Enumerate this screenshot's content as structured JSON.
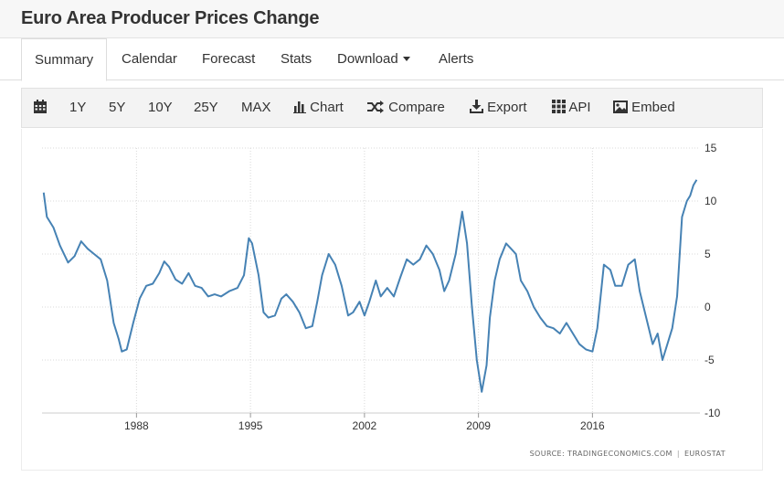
{
  "header": {
    "title": "Euro Area Producer Prices Change"
  },
  "tabs": [
    {
      "label": "Summary"
    },
    {
      "label": "Calendar"
    },
    {
      "label": "Forecast"
    },
    {
      "label": "Stats"
    },
    {
      "label": "Download"
    },
    {
      "label": "Alerts"
    }
  ],
  "toolbar": {
    "calendar_icon": "calendar-icon",
    "ranges": [
      "1Y",
      "5Y",
      "10Y",
      "25Y",
      "MAX"
    ],
    "chart_label": "Chart",
    "compare_label": "Compare",
    "export_label": "Export",
    "api_label": "API",
    "embed_label": "Embed"
  },
  "source": {
    "left": "SOURCE: TRADINGECONOMICS.COM",
    "separator": "|",
    "right": "EUROSTAT"
  },
  "colors": {
    "line": "#4682b4",
    "grid": "#d9d9d9",
    "axis_text": "#333333"
  },
  "chart_data": {
    "type": "line",
    "title": "",
    "xlabel": "",
    "ylabel": "",
    "y_position": "right",
    "ylim": [
      -10,
      15
    ],
    "yticks": [
      15,
      10,
      5,
      0,
      -5,
      -10
    ],
    "xlim": [
      1982.2,
      2022.6
    ],
    "xticks": [
      1988,
      1995,
      2002,
      2009,
      2016
    ],
    "grid": true,
    "series": [
      {
        "x": [
          1982.3,
          1982.5,
          1982.9,
          1983.3,
          1983.8,
          1984.2,
          1984.6,
          1985.0,
          1985.4,
          1985.8,
          1986.2,
          1986.6,
          1986.9,
          1987.1,
          1987.4,
          1987.8,
          1988.2,
          1988.6,
          1989.0,
          1989.4,
          1989.7,
          1990.0,
          1990.4,
          1990.8,
          1991.2,
          1991.6,
          1992.0,
          1992.4,
          1992.8,
          1993.2,
          1993.7,
          1994.2,
          1994.6,
          1994.9,
          1995.1,
          1995.5,
          1995.8,
          1996.1,
          1996.5,
          1996.9,
          1997.2,
          1997.6,
          1998.0,
          1998.4,
          1998.8,
          1999.1,
          1999.4,
          1999.8,
          2000.2,
          2000.6,
          2001.0,
          2001.3,
          2001.7,
          2002.0,
          2002.3,
          2002.7,
          2003.0,
          2003.4,
          2003.8,
          2004.2,
          2004.6,
          2005.0,
          2005.4,
          2005.8,
          2006.2,
          2006.6,
          2006.9,
          2007.2,
          2007.6,
          2008.0,
          2008.3,
          2008.6,
          2008.9,
          2009.2,
          2009.5,
          2009.7,
          2010.0,
          2010.3,
          2010.7,
          2011.0,
          2011.3,
          2011.6,
          2012.0,
          2012.4,
          2012.8,
          2013.2,
          2013.6,
          2014.0,
          2014.4,
          2014.8,
          2015.2,
          2015.6,
          2016.0,
          2016.3,
          2016.7,
          2017.1,
          2017.4,
          2017.8,
          2018.2,
          2018.6,
          2018.9,
          2019.3,
          2019.7,
          2020.0,
          2020.3,
          2020.6,
          2020.9,
          2021.2,
          2021.5,
          2021.8,
          2022.0,
          2022.2,
          2022.4
        ],
        "values": [
          10.8,
          8.5,
          7.5,
          5.8,
          4.2,
          4.8,
          6.2,
          5.5,
          5.0,
          4.5,
          2.5,
          -1.5,
          -3.0,
          -4.2,
          -4.0,
          -1.5,
          0.8,
          2.0,
          2.2,
          3.2,
          4.3,
          3.8,
          2.6,
          2.2,
          3.2,
          2.0,
          1.8,
          1.0,
          1.2,
          1.0,
          1.5,
          1.8,
          3.0,
          6.5,
          6.0,
          3.0,
          -0.5,
          -1.0,
          -0.8,
          0.8,
          1.2,
          0.5,
          -0.5,
          -2.0,
          -1.8,
          0.5,
          3.0,
          5.0,
          4.0,
          2.0,
          -0.8,
          -0.5,
          0.5,
          -0.8,
          0.5,
          2.5,
          1.0,
          1.8,
          1.0,
          2.8,
          4.5,
          4.0,
          4.5,
          5.8,
          5.0,
          3.5,
          1.5,
          2.5,
          5.0,
          9.0,
          6.0,
          0.0,
          -5.0,
          -8.0,
          -5.5,
          -1.0,
          2.5,
          4.5,
          6.0,
          5.5,
          5.0,
          2.5,
          1.5,
          0.0,
          -1.0,
          -1.8,
          -2.0,
          -2.5,
          -1.5,
          -2.5,
          -3.5,
          -4.0,
          -4.2,
          -2.0,
          4.0,
          3.5,
          2.0,
          2.0,
          4.0,
          4.5,
          1.5,
          -1.0,
          -3.5,
          -2.5,
          -5.0,
          -3.5,
          -2.0,
          1.0,
          8.5,
          10.0,
          10.5,
          11.5,
          12.0
        ]
      }
    ]
  }
}
